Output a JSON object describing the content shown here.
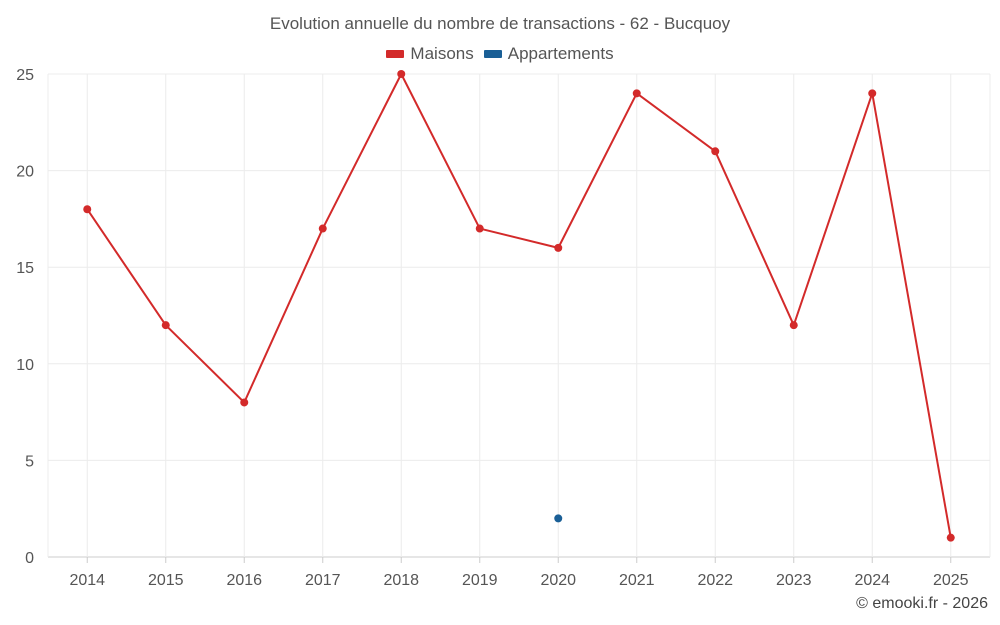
{
  "chart_data": {
    "type": "line",
    "title": "Evolution annuelle du nombre de transactions - 62 - Bucquoy",
    "xlabel": "",
    "ylabel": "",
    "categories": [
      "2014",
      "2015",
      "2016",
      "2017",
      "2018",
      "2019",
      "2020",
      "2021",
      "2022",
      "2023",
      "2024",
      "2025"
    ],
    "ylim": [
      0,
      25
    ],
    "yticks": [
      0,
      5,
      10,
      15,
      20,
      25
    ],
    "grid": true,
    "legend_position": "top-center",
    "series": [
      {
        "name": "Maisons",
        "color": "#d32a2a",
        "values": [
          18,
          12,
          8,
          17,
          25,
          17,
          16,
          24,
          21,
          12,
          24,
          1
        ]
      },
      {
        "name": "Appartements",
        "color": "#1a5f96",
        "values": [
          null,
          null,
          null,
          null,
          null,
          null,
          2,
          null,
          null,
          null,
          null,
          null
        ]
      }
    ]
  },
  "credit": "© emooki.fr - 2026"
}
